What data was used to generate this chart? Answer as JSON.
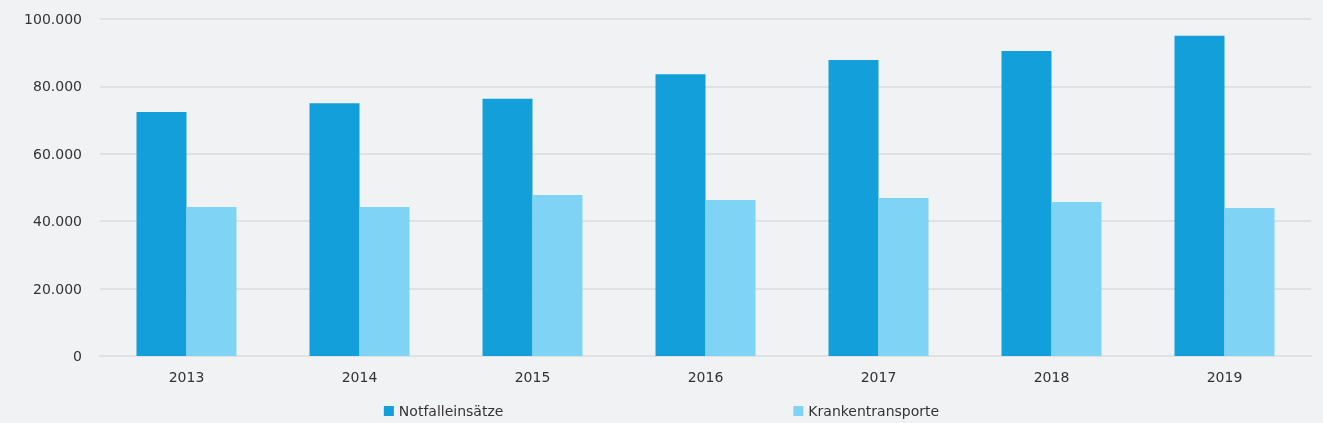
{
  "chart_data": {
    "type": "bar",
    "categories": [
      "2013",
      "2014",
      "2015",
      "2016",
      "2017",
      "2018",
      "2019"
    ],
    "series": [
      {
        "name": "Notfalleinsätze",
        "color": "#139fd9",
        "values": [
          72400,
          75000,
          76300,
          83600,
          87800,
          90500,
          95000
        ]
      },
      {
        "name": "Krankentransporte",
        "color": "#7fd3f5",
        "values": [
          44200,
          44200,
          47800,
          46300,
          46900,
          45700,
          43900
        ]
      }
    ],
    "ylim": [
      0,
      100000
    ],
    "yticks": [
      {
        "value": 0,
        "label": "0"
      },
      {
        "value": 20000,
        "label": "20.000"
      },
      {
        "value": 40000,
        "label": "40.000"
      },
      {
        "value": 60000,
        "label": "60.000"
      },
      {
        "value": 80000,
        "label": "80.000"
      },
      {
        "value": 100000,
        "label": "100.000"
      }
    ],
    "grid": "y",
    "legend": "bottom"
  }
}
